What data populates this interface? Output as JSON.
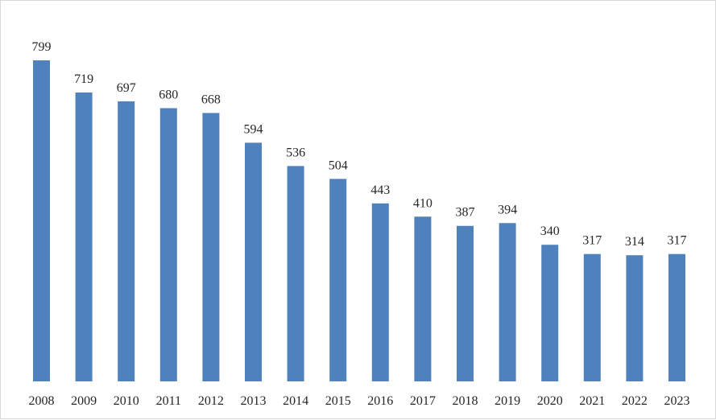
{
  "chart_data": {
    "type": "bar",
    "categories": [
      "2008",
      "2009",
      "2010",
      "2011",
      "2012",
      "2013",
      "2014",
      "2015",
      "2016",
      "2017",
      "2018",
      "2019",
      "2020",
      "2021",
      "2022",
      "2023"
    ],
    "values": [
      799,
      719,
      697,
      680,
      668,
      594,
      536,
      504,
      443,
      410,
      387,
      394,
      340,
      317,
      314,
      317
    ],
    "title": "",
    "xlabel": "",
    "ylabel": "",
    "ylim": [
      0,
      800
    ],
    "grid": false,
    "legend": "none",
    "data_labels": true,
    "bar_color": "#4f81bd"
  }
}
